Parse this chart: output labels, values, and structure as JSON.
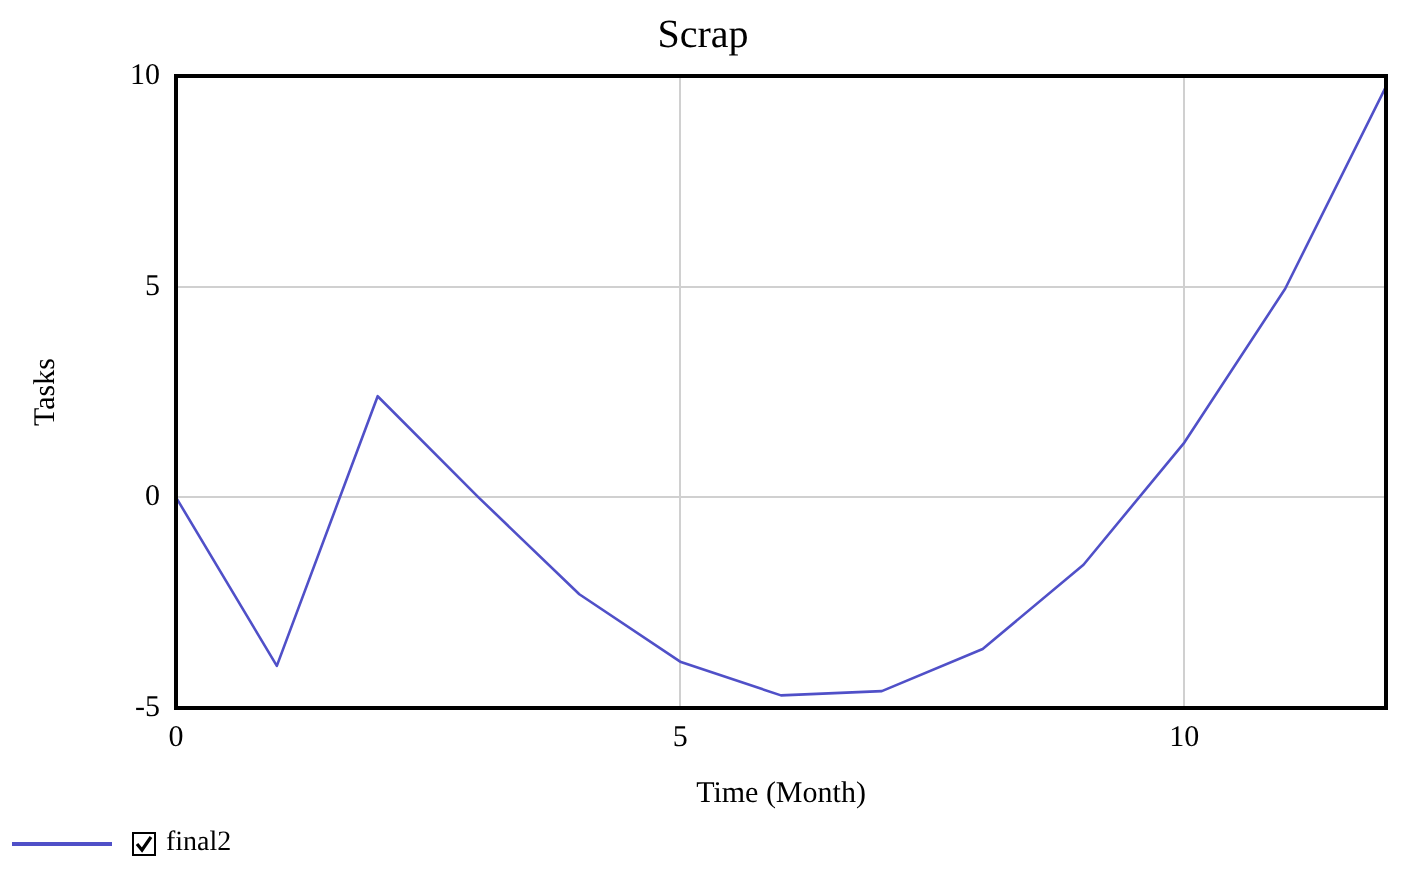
{
  "chart_data": {
    "type": "line",
    "title": "Scrap",
    "xlabel": "Time (Month)",
    "ylabel": "Tasks",
    "x": [
      0,
      1,
      2,
      3,
      4,
      5,
      6,
      7,
      8,
      9,
      10,
      11,
      12
    ],
    "series": [
      {
        "name": "final2",
        "color": "#5050c8",
        "values": [
          0,
          -4.0,
          2.4,
          0,
          -2.3,
          -3.9,
          -4.7,
          -4.6,
          -3.6,
          -1.6,
          1.3,
          4.95,
          9.75
        ]
      }
    ],
    "xlim": [
      0,
      12
    ],
    "xticks": [
      0,
      5,
      10
    ],
    "ylim": [
      -5,
      10
    ],
    "yticks": [
      -5,
      0,
      5,
      10
    ],
    "grid": true,
    "legend": "bottom left",
    "marker": "none",
    "line_style": "solid"
  }
}
